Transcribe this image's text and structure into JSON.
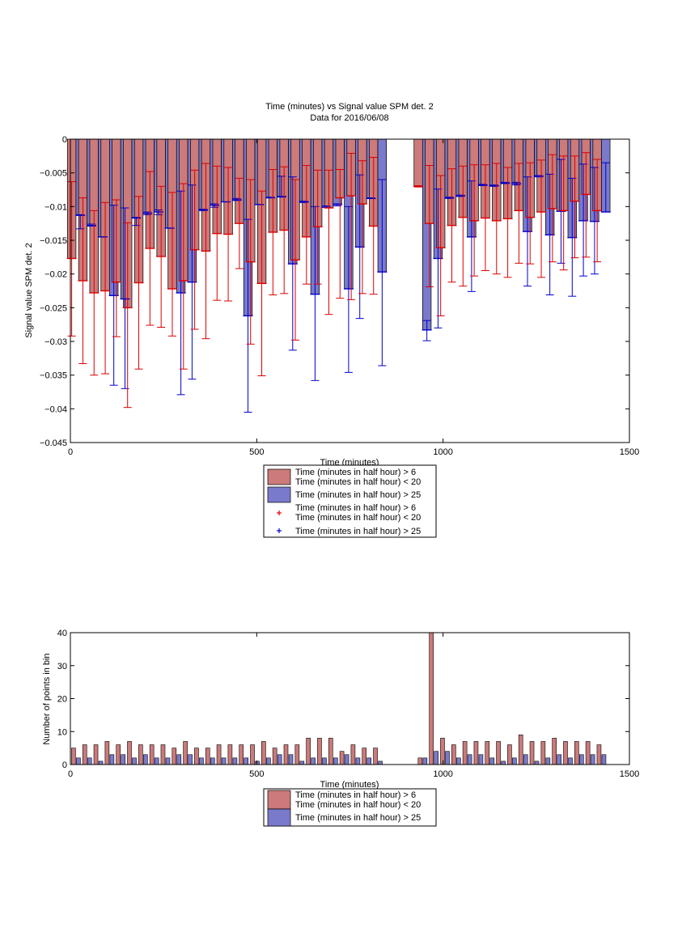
{
  "chart_data": [
    {
      "type": "bar",
      "title": "Time (minutes) vs Signal value SPM det. 2",
      "subtitle": "Data for 2016/06/08",
      "xlabel": "Time (minutes)",
      "ylabel": "Signal value SPM det. 2",
      "xlim": [
        0,
        1500
      ],
      "ylim": [
        -0.045,
        0
      ],
      "xticks": [
        "0",
        "500",
        "1000",
        "1500"
      ],
      "yticks": [
        "0",
        "-0.005",
        "-0.01",
        "-0.015",
        "-0.02",
        "-0.025",
        "-0.03",
        "-0.035",
        "-0.04",
        "-0.045"
      ],
      "grid": false,
      "legend_placement": "below",
      "legend": [
        {
          "label": "Time (minutes in half hour) > 6\nTime (minutes in half hour) < 20",
          "kind": "bar",
          "color": "#cc7a7a"
        },
        {
          "label": "Time (minutes in half hour) > 25",
          "kind": "bar",
          "color": "#7a7acc"
        },
        {
          "label": "Time (minutes in half hour) > 6\nTime (minutes in half hour) < 20",
          "kind": "marker",
          "color": "#dd0000"
        },
        {
          "label": "Time (minutes in half hour) > 25",
          "kind": "marker",
          "color": "#0000cc"
        }
      ],
      "x": [
        15,
        45,
        75,
        105,
        135,
        165,
        195,
        225,
        255,
        285,
        315,
        345,
        375,
        405,
        435,
        465,
        495,
        525,
        555,
        585,
        615,
        645,
        675,
        705,
        735,
        765,
        795,
        825,
        945,
        975,
        1005,
        1035,
        1065,
        1095,
        1125,
        1155,
        1185,
        1215,
        1245,
        1275,
        1305,
        1335,
        1365,
        1395,
        1425
      ],
      "series": [
        {
          "name": "Time (minutes in half hour) > 6\nTime (minutes in half hour) < 20",
          "color": "#cc7a7a",
          "values": [
            -0.0177,
            -0.021,
            -0.0228,
            -0.0225,
            -0.0212,
            -0.025,
            -0.0213,
            -0.0162,
            -0.0174,
            -0.0222,
            -0.021,
            -0.0164,
            -0.0166,
            -0.014,
            -0.0141,
            -0.0125,
            -0.0182,
            -0.0214,
            -0.0138,
            -0.0135,
            -0.0179,
            -0.0145,
            -0.013,
            -0.0102,
            -0.0087,
            -0.0084,
            -0.0096,
            -0.0129,
            -0.007,
            -0.0125,
            -0.0161,
            -0.0128,
            -0.0116,
            -0.0121,
            -0.0117,
            -0.0121,
            -0.0118,
            -0.0106,
            -0.0116,
            -0.0108,
            -0.0103,
            -0.0106,
            -0.0092,
            -0.0082,
            -0.0106
          ],
          "err_low": [
            -0.0292,
            -0.0333,
            -0.035,
            -0.0348,
            -0.0293,
            -0.0398,
            -0.0341,
            -0.0276,
            -0.0279,
            -0.0292,
            -0.0341,
            -0.0282,
            -0.0296,
            -0.0239,
            -0.024,
            -0.0192,
            -0.0304,
            -0.0351,
            -0.0231,
            -0.0229,
            -0.0298,
            -0.0215,
            -0.0215,
            -0.026,
            -0.0236,
            -0.0238,
            -0.0229,
            -0.023,
            -0.0071,
            -0.0219,
            -0.0262,
            -0.0212,
            -0.0218,
            -0.0203,
            -0.0195,
            -0.02,
            -0.0205,
            -0.0184,
            -0.0185,
            -0.0205,
            -0.0182,
            -0.0194,
            -0.0176,
            -0.0175,
            -0.0182
          ],
          "err_high": [
            -0.0063,
            -0.0087,
            -0.0106,
            -0.0094,
            -0.009,
            -0.0124,
            -0.0085,
            -0.0048,
            -0.007,
            -0.0079,
            -0.0066,
            -0.0046,
            -0.0036,
            -0.004,
            -0.0042,
            -0.0058,
            -0.006,
            -0.0077,
            -0.0045,
            -0.0041,
            -0.006,
            -0.0039,
            -0.0046,
            -0.0046,
            -0.0045,
            -0.0021,
            -0.0032,
            -0.0027,
            -0.0069,
            -0.0039,
            -0.0054,
            -0.0044,
            -0.004,
            -0.0038,
            -0.0038,
            -0.0036,
            -0.0042,
            -0.0036,
            -0.0035,
            -0.0031,
            -0.0023,
            -0.0025,
            -0.0025,
            -0.002,
            -0.003
          ]
        },
        {
          "name": "Time (minutes in half hour) > 25",
          "color": "#7a7acc",
          "values": [
            -0.0113,
            -0.0128,
            -0.0145,
            -0.0232,
            -0.0237,
            -0.0117,
            -0.011,
            -0.0108,
            -0.0132,
            -0.0228,
            -0.0212,
            -0.0105,
            -0.0098,
            -0.0093,
            -0.009,
            -0.0262,
            -0.0097,
            -0.0087,
            -0.0085,
            -0.0185,
            -0.0093,
            -0.023,
            -0.0101,
            -0.0097,
            -0.0222,
            -0.016,
            -0.0088,
            -0.0197,
            -0.0283,
            -0.0177,
            -0.0087,
            -0.0084,
            -0.0145,
            -0.0068,
            -0.0069,
            -0.0065,
            -0.0066,
            -0.0137,
            -0.0055,
            -0.0142,
            -0.0107,
            -0.0146,
            -0.0121,
            -0.0122,
            -0.0108
          ],
          "err_low": [
            -0.0133,
            -0.0129,
            -0.0145,
            -0.0365,
            -0.037,
            -0.0128,
            -0.0112,
            -0.0112,
            -0.0132,
            -0.0379,
            -0.0356,
            -0.0106,
            -0.0101,
            -0.0093,
            -0.0091,
            -0.0405,
            -0.0097,
            -0.0087,
            -0.0086,
            -0.0313,
            -0.0094,
            -0.0358,
            -0.0101,
            -0.0099,
            -0.0346,
            -0.0266,
            -0.0088,
            -0.0336,
            -0.0299,
            -0.028,
            -0.0088,
            -0.0085,
            -0.0226,
            -0.0069,
            -0.007,
            -0.0066,
            -0.0068,
            -0.0218,
            -0.0056,
            -0.0231,
            -0.0184,
            -0.0233,
            -0.0203,
            -0.02,
            -0.0108
          ],
          "err_high": [
            -0.0112,
            -0.0126,
            -0.0145,
            -0.0098,
            -0.0102,
            -0.0116,
            -0.0108,
            -0.0105,
            -0.0132,
            -0.0077,
            -0.0068,
            -0.0104,
            -0.0096,
            -0.0093,
            -0.0088,
            -0.0119,
            -0.0097,
            -0.0086,
            -0.0055,
            -0.0056,
            -0.0092,
            -0.01,
            -0.0099,
            -0.0096,
            -0.01,
            -0.0053,
            -0.0087,
            -0.006,
            -0.0269,
            -0.0074,
            -0.0086,
            -0.0083,
            -0.0062,
            -0.0067,
            -0.0068,
            -0.0064,
            -0.0064,
            -0.0056,
            -0.0054,
            -0.0052,
            -0.003,
            -0.0058,
            -0.0037,
            -0.0042,
            -0.0035
          ]
        }
      ]
    },
    {
      "type": "bar",
      "xlabel": "Time (minutes)",
      "ylabel": "Number of points in bin",
      "xlim": [
        0,
        1500
      ],
      "ylim": [
        0,
        40
      ],
      "xticks": [
        "0",
        "500",
        "1000",
        "1500"
      ],
      "yticks": [
        "0",
        "10",
        "20",
        "30",
        "40"
      ],
      "grid": false,
      "legend_placement": "below",
      "legend": [
        {
          "label": "Time (minutes in half hour) > 6\nTime (minutes in half hour) < 20",
          "kind": "bar",
          "color": "#cc7a7a"
        },
        {
          "label": "Time (minutes in half hour) > 25",
          "kind": "bar",
          "color": "#7a7acc"
        }
      ],
      "x": [
        15,
        45,
        75,
        105,
        135,
        165,
        195,
        225,
        255,
        285,
        315,
        345,
        375,
        405,
        435,
        465,
        495,
        525,
        555,
        585,
        615,
        645,
        675,
        705,
        735,
        765,
        795,
        825,
        945,
        975,
        1005,
        1035,
        1065,
        1095,
        1125,
        1155,
        1185,
        1215,
        1245,
        1275,
        1305,
        1335,
        1365,
        1395,
        1425
      ],
      "series": [
        {
          "name": "Time (minutes in half hour) > 6\nTime (minutes in half hour) < 20",
          "color": "#cc7a7a",
          "values": [
            5,
            6,
            6,
            7,
            6,
            7,
            6,
            6,
            6,
            5,
            7,
            5,
            5,
            6,
            6,
            6,
            6,
            7,
            5,
            6,
            6,
            8,
            8,
            8,
            4,
            6,
            5,
            5,
            2,
            40,
            8,
            6,
            7,
            7,
            7,
            7,
            6,
            9,
            7,
            7,
            8,
            7,
            7,
            7,
            6
          ]
        },
        {
          "name": "Time (minutes in half hour) > 25",
          "color": "#7a7acc",
          "values": [
            2,
            2,
            1,
            3,
            3,
            2,
            3,
            2,
            2,
            3,
            3,
            2,
            2,
            2,
            2,
            2,
            1,
            2,
            3,
            3,
            1,
            2,
            2,
            2,
            3,
            2,
            2,
            1,
            2,
            4,
            4,
            2,
            3,
            3,
            2,
            1,
            2,
            3,
            1,
            2,
            3,
            2,
            3,
            3,
            3
          ]
        }
      ]
    }
  ]
}
